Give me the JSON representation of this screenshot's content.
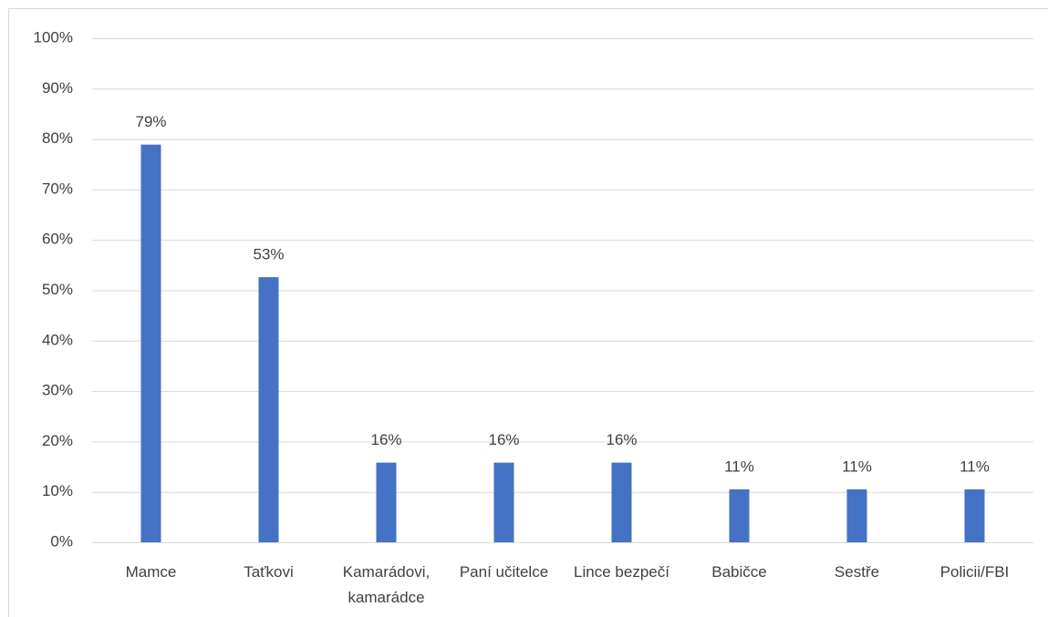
{
  "chart_data": {
    "type": "bar",
    "categories": [
      "Mamce",
      "Taťkovi",
      "Kamarádovi, kamarádce",
      "Paní učitelce",
      "Lince bezpečí",
      "Babičce",
      "Sestře",
      "Policii/FBI"
    ],
    "values": [
      78.9,
      52.6,
      15.8,
      15.8,
      15.8,
      10.5,
      10.5,
      10.5
    ],
    "value_labels": [
      "79%",
      "53%",
      "16%",
      "16%",
      "16%",
      "11%",
      "11%",
      "11%"
    ],
    "color": "#4472c4",
    "ylim": [
      0,
      100
    ],
    "yticks": [
      {
        "value": 0,
        "label": "0%"
      },
      {
        "value": 10,
        "label": "10%"
      },
      {
        "value": 20,
        "label": "20%"
      },
      {
        "value": 30,
        "label": "30%"
      },
      {
        "value": 40,
        "label": "40%"
      },
      {
        "value": 50,
        "label": "50%"
      },
      {
        "value": 60,
        "label": "60%"
      },
      {
        "value": 70,
        "label": "70%"
      },
      {
        "value": 80,
        "label": "80%"
      },
      {
        "value": 90,
        "label": "90%"
      },
      {
        "value": 100,
        "label": "100%"
      }
    ],
    "grid": true
  }
}
